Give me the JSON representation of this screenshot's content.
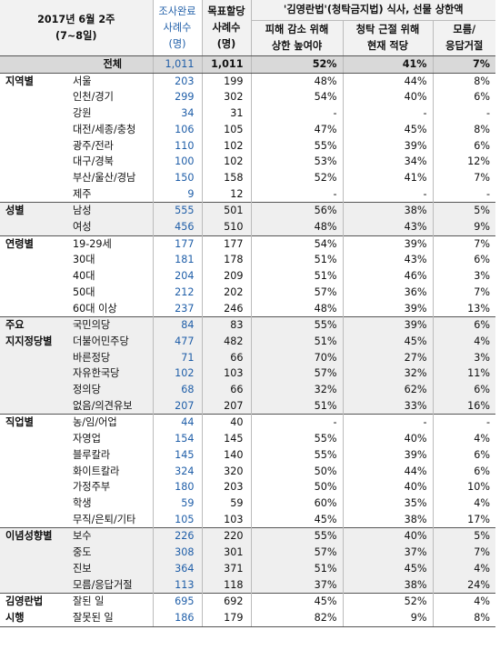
{
  "header": {
    "period_line1": "2017년 6월 2주",
    "period_line2": "(7~8일)",
    "actual_line1": "조사완료",
    "actual_line2": "사례수",
    "actual_line3": "(명)",
    "target_line1": "목표할당",
    "target_line2": "사례수",
    "target_line3": "(명)",
    "group_title": "'김영란법'(청탁금지법) 식사, 선물 상한액",
    "col1_line1": "피해 감소 위해",
    "col1_line2": "상한 높여야",
    "col2_line1": "청탁 근절 위해",
    "col2_line2": "현재 적당",
    "col3_line1": "모름/",
    "col3_line2": "응답거절"
  },
  "rows": [
    {
      "group": "",
      "sub": "전체",
      "actual": "1,011",
      "target": "1,011",
      "p1": "52%",
      "p2": "41%",
      "p3": "7%"
    },
    {
      "group": "지역별",
      "sub": "서울",
      "actual": "203",
      "target": "199",
      "p1": "48%",
      "p2": "44%",
      "p3": "8%"
    },
    {
      "group": "",
      "sub": "인천/경기",
      "actual": "299",
      "target": "302",
      "p1": "54%",
      "p2": "40%",
      "p3": "6%"
    },
    {
      "group": "",
      "sub": "강원",
      "actual": "34",
      "target": "31",
      "p1": "-",
      "p2": "-",
      "p3": "-"
    },
    {
      "group": "",
      "sub": "대전/세종/충청",
      "actual": "106",
      "target": "105",
      "p1": "47%",
      "p2": "45%",
      "p3": "8%"
    },
    {
      "group": "",
      "sub": "광주/전라",
      "actual": "110",
      "target": "102",
      "p1": "55%",
      "p2": "39%",
      "p3": "6%"
    },
    {
      "group": "",
      "sub": "대구/경북",
      "actual": "100",
      "target": "102",
      "p1": "53%",
      "p2": "34%",
      "p3": "12%"
    },
    {
      "group": "",
      "sub": "부산/울산/경남",
      "actual": "150",
      "target": "158",
      "p1": "52%",
      "p2": "41%",
      "p3": "7%"
    },
    {
      "group": "",
      "sub": "제주",
      "actual": "9",
      "target": "12",
      "p1": "-",
      "p2": "-",
      "p3": "-"
    },
    {
      "group": "성별",
      "sub": "남성",
      "actual": "555",
      "target": "501",
      "p1": "56%",
      "p2": "38%",
      "p3": "5%"
    },
    {
      "group": "",
      "sub": "여성",
      "actual": "456",
      "target": "510",
      "p1": "48%",
      "p2": "43%",
      "p3": "9%"
    },
    {
      "group": "연령별",
      "sub": "19-29세",
      "actual": "177",
      "target": "177",
      "p1": "54%",
      "p2": "39%",
      "p3": "7%"
    },
    {
      "group": "",
      "sub": "30대",
      "actual": "181",
      "target": "178",
      "p1": "51%",
      "p2": "43%",
      "p3": "6%"
    },
    {
      "group": "",
      "sub": "40대",
      "actual": "204",
      "target": "209",
      "p1": "51%",
      "p2": "46%",
      "p3": "3%"
    },
    {
      "group": "",
      "sub": "50대",
      "actual": "212",
      "target": "202",
      "p1": "57%",
      "p2": "36%",
      "p3": "7%"
    },
    {
      "group": "",
      "sub": "60대 이상",
      "actual": "237",
      "target": "246",
      "p1": "48%",
      "p2": "39%",
      "p3": "13%"
    },
    {
      "group": "주요",
      "sub": "국민의당",
      "actual": "84",
      "target": "83",
      "p1": "55%",
      "p2": "39%",
      "p3": "6%"
    },
    {
      "group": "지지정당별",
      "sub": "더불어민주당",
      "actual": "477",
      "target": "482",
      "p1": "51%",
      "p2": "45%",
      "p3": "4%"
    },
    {
      "group": "",
      "sub": "바른정당",
      "actual": "71",
      "target": "66",
      "p1": "70%",
      "p2": "27%",
      "p3": "3%"
    },
    {
      "group": "",
      "sub": "자유한국당",
      "actual": "102",
      "target": "103",
      "p1": "57%",
      "p2": "32%",
      "p3": "11%"
    },
    {
      "group": "",
      "sub": "정의당",
      "actual": "68",
      "target": "66",
      "p1": "32%",
      "p2": "62%",
      "p3": "6%"
    },
    {
      "group": "",
      "sub": "없음/의견유보",
      "actual": "207",
      "target": "207",
      "p1": "51%",
      "p2": "33%",
      "p3": "16%"
    },
    {
      "group": "직업별",
      "sub": "농/임/어업",
      "actual": "44",
      "target": "40",
      "p1": "-",
      "p2": "-",
      "p3": "-"
    },
    {
      "group": "",
      "sub": "자영업",
      "actual": "154",
      "target": "145",
      "p1": "55%",
      "p2": "40%",
      "p3": "4%"
    },
    {
      "group": "",
      "sub": "블루칼라",
      "actual": "145",
      "target": "140",
      "p1": "55%",
      "p2": "39%",
      "p3": "6%"
    },
    {
      "group": "",
      "sub": "화이트칼라",
      "actual": "324",
      "target": "320",
      "p1": "50%",
      "p2": "44%",
      "p3": "6%"
    },
    {
      "group": "",
      "sub": "가정주부",
      "actual": "180",
      "target": "203",
      "p1": "50%",
      "p2": "40%",
      "p3": "10%"
    },
    {
      "group": "",
      "sub": "학생",
      "actual": "59",
      "target": "59",
      "p1": "60%",
      "p2": "35%",
      "p3": "4%"
    },
    {
      "group": "",
      "sub": "무직/은퇴/기타",
      "actual": "105",
      "target": "103",
      "p1": "45%",
      "p2": "38%",
      "p3": "17%"
    },
    {
      "group": "이념성향별",
      "sub": "보수",
      "actual": "226",
      "target": "220",
      "p1": "55%",
      "p2": "40%",
      "p3": "5%"
    },
    {
      "group": "",
      "sub": "중도",
      "actual": "308",
      "target": "301",
      "p1": "57%",
      "p2": "37%",
      "p3": "7%"
    },
    {
      "group": "",
      "sub": "진보",
      "actual": "364",
      "target": "371",
      "p1": "51%",
      "p2": "45%",
      "p3": "4%"
    },
    {
      "group": "",
      "sub": "모름/응답거절",
      "actual": "113",
      "target": "118",
      "p1": "37%",
      "p2": "38%",
      "p3": "24%"
    },
    {
      "group": "김영란법",
      "sub": "잘된 일",
      "actual": "695",
      "target": "692",
      "p1": "45%",
      "p2": "52%",
      "p3": "4%"
    },
    {
      "group": "시행",
      "sub": "잘못된 일",
      "actual": "186",
      "target": "179",
      "p1": "82%",
      "p2": "9%",
      "p3": "8%"
    }
  ]
}
